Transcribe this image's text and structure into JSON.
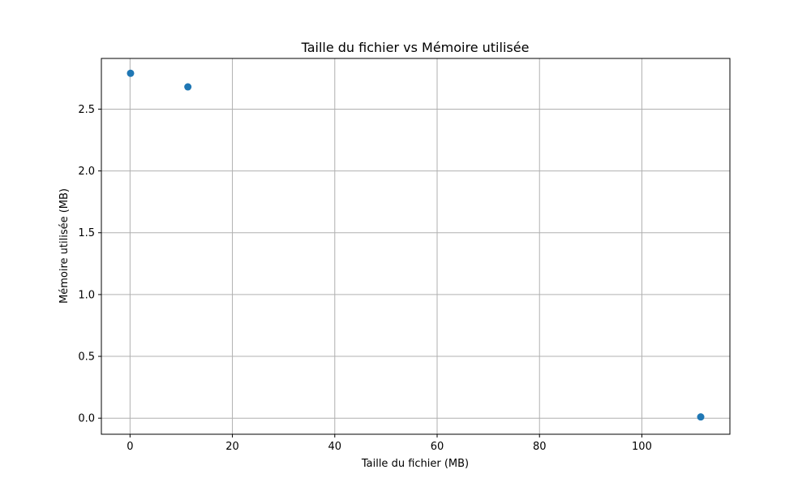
{
  "chart_data": {
    "type": "scatter",
    "title": "Taille du fichier vs Mémoire utilisée",
    "xlabel": "Taille du fichier (MB)",
    "ylabel": "Mémoire utilisée (MB)",
    "xlim": [
      -5.6,
      117.2
    ],
    "ylim": [
      -0.13,
      2.91
    ],
    "xticks": [
      0,
      20,
      40,
      60,
      80,
      100
    ],
    "xtick_labels": [
      "0",
      "20",
      "40",
      "60",
      "80",
      "100"
    ],
    "yticks": [
      0.0,
      0.5,
      1.0,
      1.5,
      2.0,
      2.5
    ],
    "ytick_labels": [
      "0.0",
      "0.5",
      "1.0",
      "1.5",
      "2.0",
      "2.5"
    ],
    "grid": true,
    "color": "#1f77b4",
    "x": [
      0.1,
      11.3,
      111.5
    ],
    "y": [
      2.79,
      2.68,
      0.01
    ]
  }
}
